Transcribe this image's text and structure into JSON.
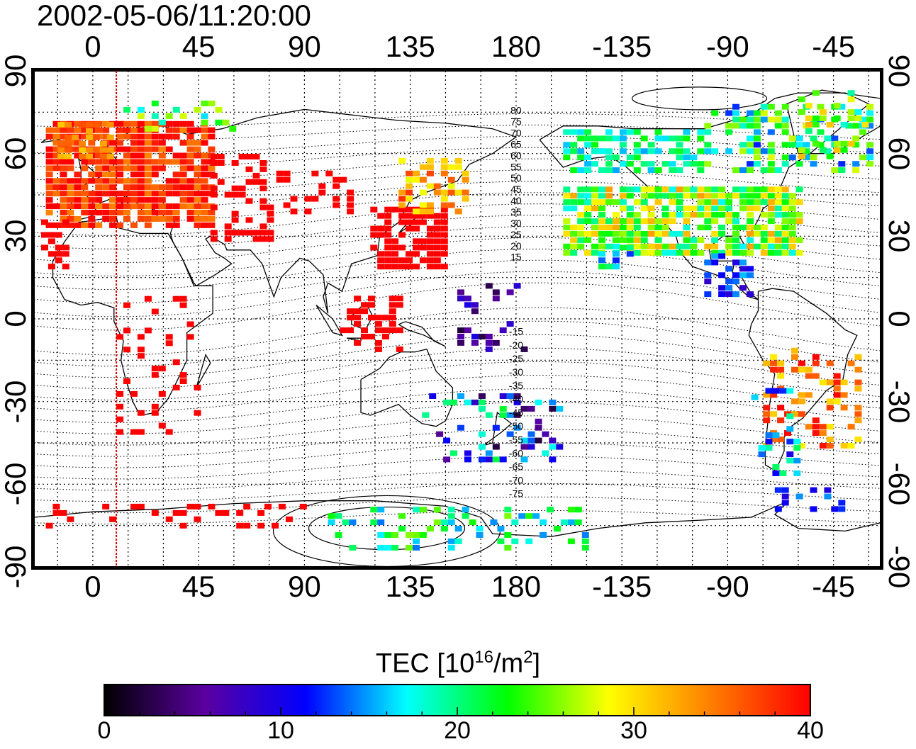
{
  "title": "2002-05-06/11:20:00",
  "x_ticks_top": [
    "0",
    "45",
    "90",
    "135",
    "180",
    "-135",
    "-90",
    "-45"
  ],
  "x_ticks_bottom": [
    "0",
    "45",
    "90",
    "135",
    "180",
    "-135",
    "-90",
    "-45"
  ],
  "y_ticks_left": [
    "90",
    "60",
    "30",
    "0",
    "-30",
    "-60",
    "-90"
  ],
  "y_ticks_right": [
    "90",
    "60",
    "30",
    "0",
    "-30",
    "-60",
    "-90"
  ],
  "colorbar": {
    "title": "TEC  [10",
    "title_sup": "16",
    "title_unit": "/m",
    "title_unit_sup": "2",
    "title_end": "]",
    "ticks": [
      "0",
      "10",
      "20",
      "30",
      "40"
    ],
    "min": 0,
    "max": 40,
    "colors": [
      "#000000",
      "#5a00a0",
      "#0000ff",
      "#00ffff",
      "#00ff00",
      "#ffff00",
      "#ff8000",
      "#ff0000"
    ]
  },
  "map": {
    "lon_range": [
      -25,
      335
    ],
    "lat_range": [
      -90,
      90
    ],
    "terminator_lon": 10,
    "contour_labels_north": [
      "80",
      "75",
      "70",
      "65",
      "60",
      "55",
      "50",
      "45",
      "40",
      "35",
      "30",
      "25",
      "20",
      "15"
    ],
    "contour_labels_south": [
      "-15",
      "-20",
      "-25",
      "-30",
      "-35",
      "-40",
      "-45",
      "-50",
      "-55",
      "-60",
      "-65",
      "-70",
      "-75"
    ]
  }
}
